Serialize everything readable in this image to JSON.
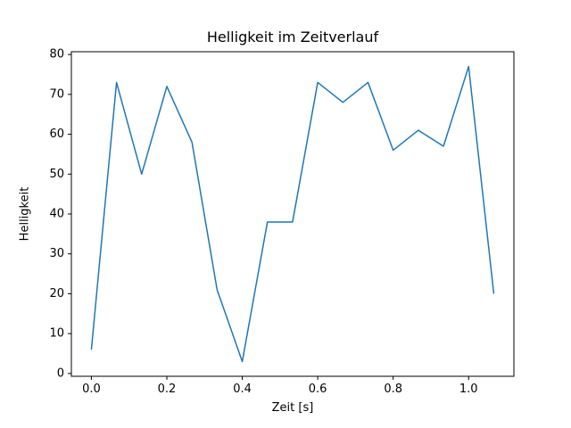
{
  "figure": {
    "background": "#ffffff",
    "text_color": "#000000"
  },
  "chart_data": {
    "type": "line",
    "title": "Helligkeit im Zeitverlauf",
    "xlabel": "Zeit [s]",
    "ylabel": "Helligkeit",
    "x": [
      0.0,
      0.0667,
      0.1333,
      0.2,
      0.2667,
      0.3333,
      0.4,
      0.4667,
      0.5333,
      0.6,
      0.6667,
      0.7333,
      0.8,
      0.8667,
      0.9333,
      1.0,
      1.0667
    ],
    "y": [
      6,
      73,
      50,
      72,
      58,
      21,
      3,
      38,
      38,
      73,
      68,
      73,
      56,
      61,
      57,
      77,
      20
    ],
    "xlim": [
      -0.053,
      1.12
    ],
    "ylim": [
      -0.7,
      80.7
    ],
    "xticks": [
      0.0,
      0.2,
      0.4,
      0.6,
      0.8,
      1.0
    ],
    "xtick_labels": [
      "0.0",
      "0.2",
      "0.4",
      "0.6",
      "0.8",
      "1.0"
    ],
    "yticks": [
      0,
      10,
      20,
      30,
      40,
      50,
      60,
      70,
      80
    ],
    "ytick_labels": [
      "0",
      "10",
      "20",
      "30",
      "40",
      "50",
      "60",
      "70",
      "80"
    ],
    "line_color": "#1f77b4",
    "line_width": 1.5,
    "spine_color": "#000000",
    "grid": false,
    "legend_position": "none"
  }
}
